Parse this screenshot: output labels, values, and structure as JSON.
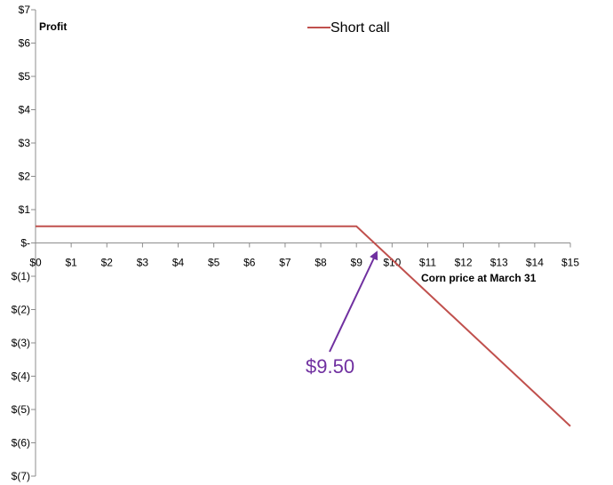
{
  "chart_data": {
    "type": "line",
    "title": "",
    "ylabel": "Profit",
    "xlabel": "Corn price at March 31",
    "xlim": [
      0,
      15
    ],
    "ylim": [
      -7,
      7
    ],
    "grid": false,
    "legend_position": "top",
    "x_tick_labels": [
      "$0",
      "$1",
      "$2",
      "$3",
      "$4",
      "$5",
      "$6",
      "$7",
      "$8",
      "$9",
      "$10",
      "$11",
      "$12",
      "$13",
      "$14",
      "$15"
    ],
    "y_ticks": [
      {
        "value": 7,
        "label": "$7"
      },
      {
        "value": 6,
        "label": "$6"
      },
      {
        "value": 5,
        "label": "$5"
      },
      {
        "value": 4,
        "label": "$4"
      },
      {
        "value": 3,
        "label": "$3"
      },
      {
        "value": 2,
        "label": "$2"
      },
      {
        "value": 1,
        "label": "$1"
      },
      {
        "value": 0,
        "label": "$-"
      },
      {
        "value": -1,
        "label": "$(1)"
      },
      {
        "value": -2,
        "label": "$(2)"
      },
      {
        "value": -3,
        "label": "$(3)"
      },
      {
        "value": -4,
        "label": "$(4)"
      },
      {
        "value": -5,
        "label": "$(5)"
      },
      {
        "value": -6,
        "label": "$(6)"
      },
      {
        "value": -7,
        "label": "$(7)"
      }
    ],
    "series": [
      {
        "name": "Short call",
        "color": "#c0504d",
        "points": [
          {
            "x": 0,
            "y": 0.5
          },
          {
            "x": 9,
            "y": 0.5
          },
          {
            "x": 15,
            "y": -5.5
          }
        ]
      }
    ],
    "annotation": {
      "text": "$9.50",
      "color": "#7030a0",
      "target_x": 9.5,
      "target_y": 0
    }
  }
}
